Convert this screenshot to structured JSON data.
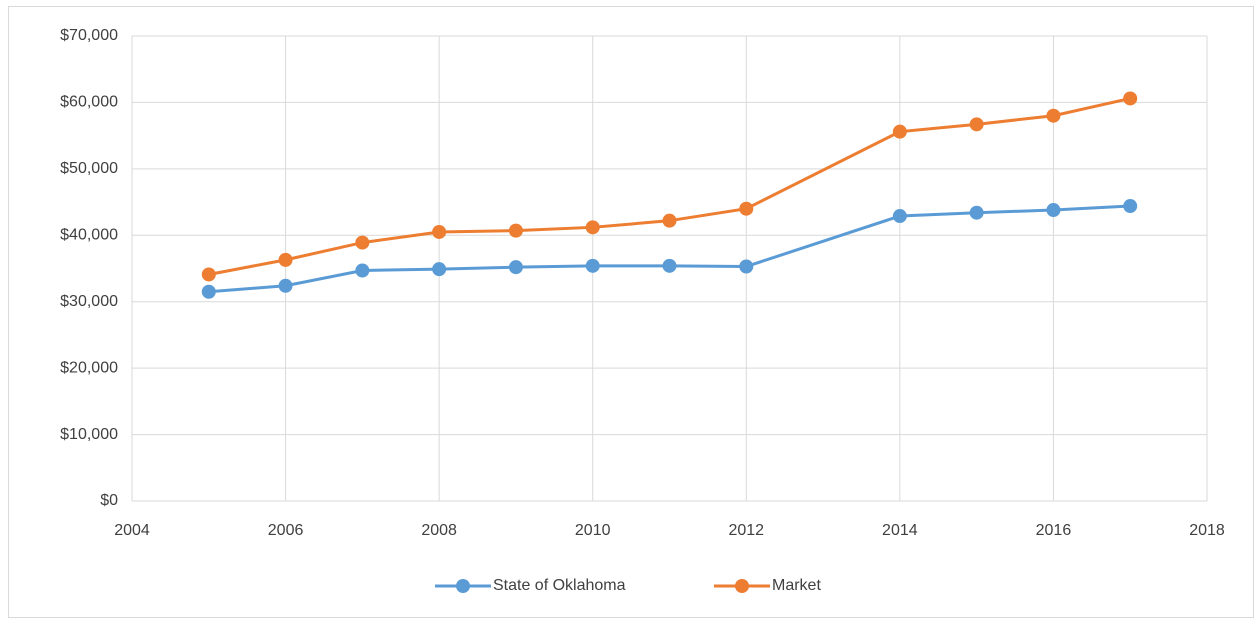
{
  "chart_data": {
    "type": "line",
    "x": [
      2005,
      2006,
      2007,
      2008,
      2009,
      2010,
      2011,
      2012,
      2014,
      2015,
      2016,
      2017
    ],
    "series": [
      {
        "name": "State of Oklahoma",
        "color": "#5b9bd5",
        "values": [
          31500,
          32400,
          34700,
          34900,
          35200,
          35400,
          35400,
          35300,
          42900,
          43400,
          43800,
          44400
        ]
      },
      {
        "name": "Market",
        "color": "#ed7d31",
        "values": [
          34100,
          36300,
          38900,
          40500,
          40700,
          41200,
          42200,
          44000,
          55600,
          56700,
          58000,
          60600
        ]
      }
    ],
    "xlim": [
      2004,
      2018
    ],
    "xticks": [
      2004,
      2006,
      2008,
      2010,
      2012,
      2014,
      2016,
      2018
    ],
    "ylim": [
      0,
      70000
    ],
    "yticks": [
      {
        "value": 0,
        "label": "$0"
      },
      {
        "value": 10000,
        "label": "$10,000"
      },
      {
        "value": 20000,
        "label": "$20,000"
      },
      {
        "value": 30000,
        "label": "$30,000"
      },
      {
        "value": 40000,
        "label": "$40,000"
      },
      {
        "value": 50000,
        "label": "$50,000"
      },
      {
        "value": 60000,
        "label": "$60,000"
      },
      {
        "value": 70000,
        "label": "$70,000"
      }
    ],
    "grid": true,
    "legend": "bottom"
  }
}
